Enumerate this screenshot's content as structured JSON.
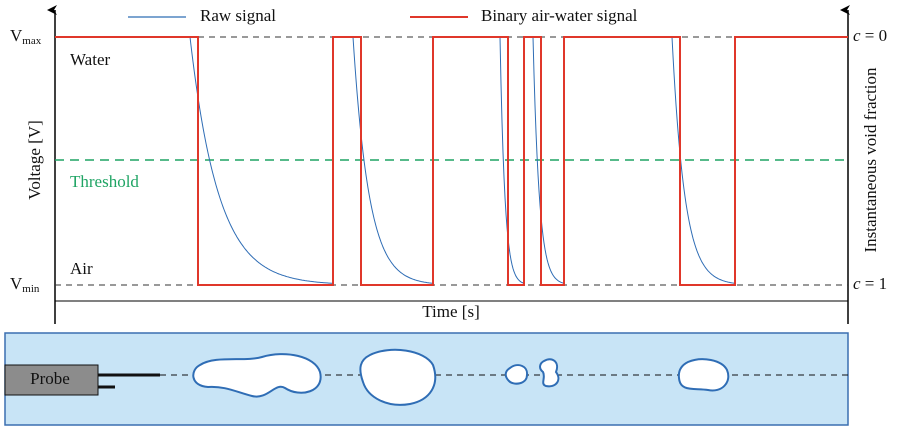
{
  "legend": {
    "raw": "Raw signal",
    "binary": "Binary air-water signal"
  },
  "axes": {
    "y_label": "Voltage [V]",
    "x_label": "Time [s]",
    "y2_label": "Instantaneous void fraction",
    "vmax": {
      "base": "V",
      "sub": "max"
    },
    "vmin": {
      "base": "V",
      "sub": "min"
    },
    "c_top": {
      "symbol": "c",
      "rest": " = 0"
    },
    "c_bottom": {
      "symbol": "c",
      "rest": " = 1"
    }
  },
  "annotations": {
    "water": "Water",
    "threshold": "Threshold",
    "air": "Air"
  },
  "probe": {
    "label": "Probe"
  }
}
